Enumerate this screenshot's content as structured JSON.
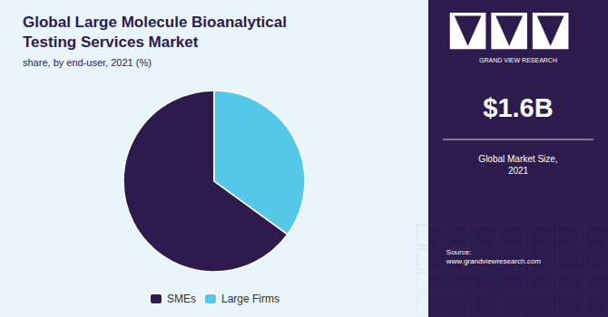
{
  "chart_data": {
    "type": "pie",
    "title": "Global Large Molecule Bioanalytical\nTesting Services Market",
    "subtitle": "share, by end-user, 2021 (%)",
    "categories": [
      "SMEs",
      "Large Firms"
    ],
    "values": [
      65,
      35
    ],
    "colors": [
      "#2d1b4e",
      "#55c8e8"
    ],
    "legend": "bottom",
    "annotations": [
      "GRAND VIEW RESEARCH",
      "$1.6B",
      "Global Market Size,\n2021",
      "Source:\nwww.grandviewresearch.com"
    ]
  }
}
